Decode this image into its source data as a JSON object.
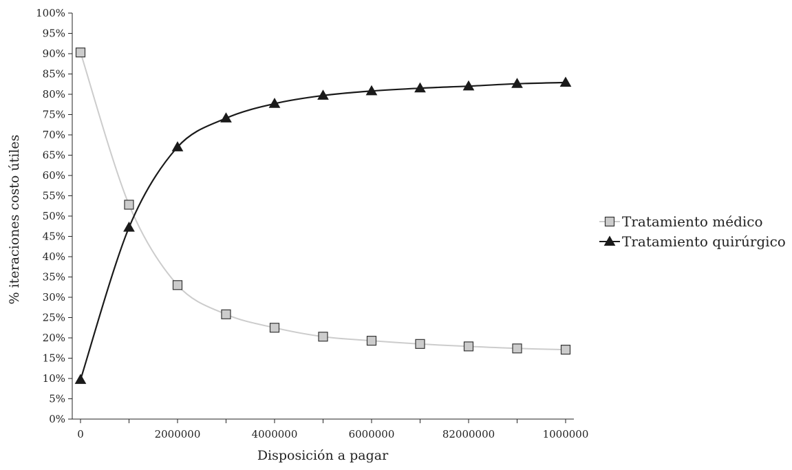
{
  "chart_data": {
    "type": "line",
    "title": "",
    "xlabel": "Disposición a pagar",
    "ylabel": "% iteraciones costo útiles",
    "x_tick_labels": [
      "0",
      "2000000",
      "4000000",
      "6000000",
      "82000000",
      "1000000"
    ],
    "y_tick_labels": [
      "0%",
      "5%",
      "10%",
      "15%",
      "20%",
      "25%",
      "30%",
      "35%",
      "40%",
      "45%",
      "50%",
      "55%",
      "60%",
      "65%",
      "70%",
      "75%",
      "80%",
      "85%",
      "90%",
      "95%",
      "100%"
    ],
    "ylim": [
      0,
      100
    ],
    "legend_position": "right",
    "grid": false,
    "points": 11,
    "series": [
      {
        "name": "Tratamiento médico",
        "marker": "square",
        "color": "#cccccc",
        "marker_fill": "#cccccc",
        "values": [
          90.3,
          52.8,
          33.0,
          25.8,
          22.5,
          20.3,
          19.3,
          18.5,
          17.9,
          17.4,
          17.1
        ]
      },
      {
        "name": "Tratamiento quirúrgico",
        "marker": "triangle",
        "color": "#1a1a1a",
        "marker_fill": "#1a1a1a",
        "values": [
          9.7,
          47.2,
          67.0,
          74.1,
          77.7,
          79.7,
          80.8,
          81.5,
          82.0,
          82.6,
          82.9
        ]
      }
    ]
  }
}
